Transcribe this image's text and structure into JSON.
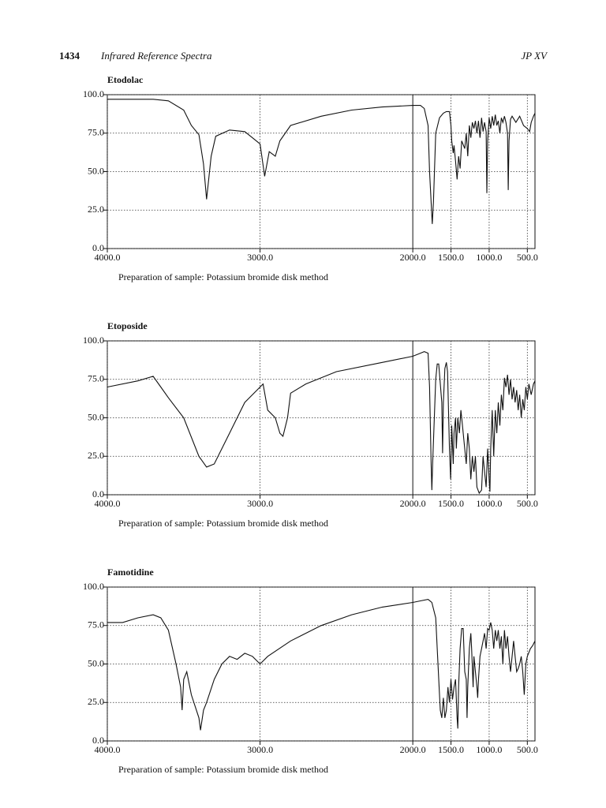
{
  "header": {
    "page": "1434",
    "title": "Infrared Reference Spectra",
    "edition": "JP XV"
  },
  "chart_data": [
    {
      "type": "line",
      "title": "Etodolac",
      "note": "Preparation of sample: Potassium bromide disk method",
      "color": "#111111",
      "grid": true,
      "scale_break": 2000,
      "xlim": [
        4000,
        400
      ],
      "ylim": [
        0,
        100
      ],
      "xticks": [
        {
          "value": 4000,
          "label": "4000.0"
        },
        {
          "value": 3000,
          "label": "3000.0"
        },
        {
          "value": 2000,
          "label": "2000.0"
        },
        {
          "value": 1500,
          "label": "1500.0"
        },
        {
          "value": 1000,
          "label": "1000.0"
        },
        {
          "value": 500,
          "label": "500.0"
        }
      ],
      "yticks": [
        {
          "value": 0,
          "label": "0.0"
        },
        {
          "value": 25,
          "label": "25.0"
        },
        {
          "value": 50,
          "label": "50.0"
        },
        {
          "value": 75,
          "label": "75.0"
        },
        {
          "value": 100,
          "label": "100.0"
        }
      ],
      "x": [
        4000,
        3700,
        3600,
        3500,
        3450,
        3400,
        3370,
        3350,
        3320,
        3290,
        3200,
        3100,
        3050,
        3000,
        2970,
        2940,
        2900,
        2870,
        2800,
        2600,
        2400,
        2200,
        2000,
        1900,
        1850,
        1800,
        1780,
        1760,
        1745,
        1730,
        1700,
        1650,
        1600,
        1560,
        1520,
        1500,
        1490,
        1470,
        1460,
        1440,
        1420,
        1400,
        1380,
        1360,
        1320,
        1300,
        1280,
        1260,
        1240,
        1220,
        1200,
        1180,
        1160,
        1140,
        1120,
        1100,
        1080,
        1060,
        1040,
        1030,
        1020,
        1000,
        980,
        960,
        940,
        920,
        900,
        880,
        860,
        840,
        820,
        800,
        780,
        760,
        750,
        740,
        720,
        700,
        650,
        600,
        550,
        500,
        470,
        450,
        420,
        400
      ],
      "values": [
        97,
        97,
        96,
        90,
        80,
        74,
        55,
        32,
        60,
        73,
        77,
        76,
        72,
        68,
        47,
        63,
        60,
        70,
        80,
        86,
        90,
        92,
        93,
        93,
        91,
        80,
        50,
        30,
        16,
        30,
        75,
        85,
        88,
        89,
        89,
        80,
        70,
        62,
        67,
        57,
        45,
        60,
        52,
        70,
        65,
        75,
        60,
        80,
        72,
        82,
        78,
        83,
        75,
        83,
        72,
        85,
        76,
        82,
        76,
        36,
        70,
        85,
        78,
        86,
        80,
        87,
        80,
        83,
        75,
        85,
        82,
        86,
        82,
        75,
        38,
        70,
        84,
        86,
        82,
        86,
        80,
        78,
        76,
        82,
        86,
        88
      ]
    },
    {
      "type": "line",
      "title": "Etoposide",
      "note": "Preparation of sample: Potassium bromide disk method",
      "color": "#111111",
      "grid": true,
      "scale_break": 2000,
      "xlim": [
        4000,
        400
      ],
      "ylim": [
        0,
        100
      ],
      "xticks": [
        {
          "value": 4000,
          "label": "4000.0"
        },
        {
          "value": 3000,
          "label": "3000.0"
        },
        {
          "value": 2000,
          "label": "2000.0"
        },
        {
          "value": 1500,
          "label": "1500.0"
        },
        {
          "value": 1000,
          "label": "1000.0"
        },
        {
          "value": 500,
          "label": "500.0"
        }
      ],
      "yticks": [
        {
          "value": 0,
          "label": "0.0"
        },
        {
          "value": 25,
          "label": "25.0"
        },
        {
          "value": 50,
          "label": "50.0"
        },
        {
          "value": 75,
          "label": "75.0"
        },
        {
          "value": 100,
          "label": "100.0"
        }
      ],
      "x": [
        4000,
        3800,
        3700,
        3650,
        3600,
        3500,
        3400,
        3350,
        3300,
        3200,
        3100,
        3000,
        2980,
        2950,
        2900,
        2870,
        2850,
        2820,
        2800,
        2700,
        2500,
        2200,
        2000,
        1900,
        1850,
        1800,
        1780,
        1760,
        1750,
        1740,
        1700,
        1680,
        1660,
        1620,
        1610,
        1600,
        1580,
        1560,
        1545,
        1520,
        1505,
        1490,
        1470,
        1460,
        1440,
        1430,
        1410,
        1390,
        1370,
        1350,
        1330,
        1300,
        1280,
        1260,
        1240,
        1220,
        1200,
        1180,
        1160,
        1130,
        1100,
        1080,
        1060,
        1040,
        1020,
        1000,
        990,
        980,
        960,
        940,
        920,
        900,
        880,
        860,
        840,
        820,
        800,
        780,
        760,
        740,
        720,
        700,
        680,
        660,
        640,
        620,
        600,
        580,
        560,
        540,
        520,
        500,
        480,
        450,
        420,
        400
      ],
      "values": [
        70,
        74,
        77,
        70,
        63,
        50,
        25,
        18,
        20,
        40,
        60,
        70,
        72,
        55,
        50,
        40,
        38,
        50,
        66,
        72,
        80,
        86,
        90,
        92,
        93,
        92,
        70,
        20,
        3,
        20,
        75,
        85,
        85,
        60,
        27,
        60,
        82,
        86,
        80,
        30,
        10,
        45,
        20,
        40,
        50,
        30,
        50,
        40,
        55,
        45,
        35,
        20,
        40,
        30,
        10,
        25,
        15,
        25,
        5,
        1,
        3,
        25,
        15,
        5,
        30,
        10,
        2,
        30,
        55,
        25,
        55,
        40,
        60,
        45,
        65,
        55,
        76,
        70,
        78,
        65,
        75,
        62,
        70,
        60,
        68,
        55,
        65,
        50,
        62,
        55,
        70,
        62,
        72,
        65,
        72,
        74
      ]
    },
    {
      "type": "line",
      "title": "Famotidine",
      "note": "Preparation of sample: Potassium bromide disk method",
      "color": "#111111",
      "grid": true,
      "scale_break": 2000,
      "xlim": [
        4000,
        400
      ],
      "ylim": [
        0,
        100
      ],
      "xticks": [
        {
          "value": 4000,
          "label": "4000.0"
        },
        {
          "value": 3000,
          "label": "3000.0"
        },
        {
          "value": 2000,
          "label": "2000.0"
        },
        {
          "value": 1500,
          "label": "1500.0"
        },
        {
          "value": 1000,
          "label": "1000.0"
        },
        {
          "value": 500,
          "label": "500.0"
        }
      ],
      "yticks": [
        {
          "value": 0,
          "label": "0.0"
        },
        {
          "value": 25,
          "label": "25.0"
        },
        {
          "value": 50,
          "label": "50.0"
        },
        {
          "value": 75,
          "label": "75.0"
        },
        {
          "value": 100,
          "label": "100.0"
        }
      ],
      "x": [
        4000,
        3900,
        3800,
        3700,
        3650,
        3600,
        3550,
        3520,
        3510,
        3500,
        3480,
        3450,
        3400,
        3390,
        3370,
        3350,
        3300,
        3250,
        3200,
        3150,
        3100,
        3050,
        3000,
        2950,
        2800,
        2600,
        2400,
        2200,
        2000,
        1900,
        1800,
        1750,
        1700,
        1680,
        1650,
        1640,
        1620,
        1600,
        1580,
        1560,
        1540,
        1520,
        1500,
        1480,
        1460,
        1440,
        1420,
        1410,
        1400,
        1380,
        1360,
        1340,
        1320,
        1300,
        1290,
        1280,
        1260,
        1240,
        1230,
        1210,
        1200,
        1180,
        1160,
        1150,
        1140,
        1120,
        1100,
        1080,
        1060,
        1040,
        1020,
        1000,
        980,
        960,
        940,
        920,
        900,
        880,
        860,
        840,
        820,
        800,
        780,
        760,
        740,
        720,
        700,
        680,
        660,
        640,
        620,
        600,
        580,
        560,
        540,
        520,
        500,
        460,
        430,
        400
      ],
      "values": [
        77,
        77,
        80,
        82,
        80,
        72,
        50,
        35,
        20,
        40,
        45,
        30,
        15,
        7,
        20,
        25,
        40,
        50,
        55,
        53,
        57,
        55,
        50,
        55,
        65,
        75,
        82,
        87,
        90,
        91,
        92,
        90,
        80,
        60,
        30,
        20,
        15,
        28,
        15,
        20,
        35,
        25,
        40,
        27,
        35,
        40,
        15,
        8,
        35,
        60,
        73,
        73,
        45,
        40,
        15,
        35,
        60,
        70,
        60,
        35,
        55,
        45,
        35,
        28,
        40,
        55,
        60,
        65,
        70,
        60,
        73,
        72,
        77,
        72,
        60,
        72,
        65,
        72,
        60,
        68,
        50,
        72,
        60,
        68,
        55,
        45,
        55,
        65,
        55,
        45,
        47,
        50,
        55,
        45,
        30,
        50,
        55,
        60,
        62,
        65
      ]
    }
  ]
}
